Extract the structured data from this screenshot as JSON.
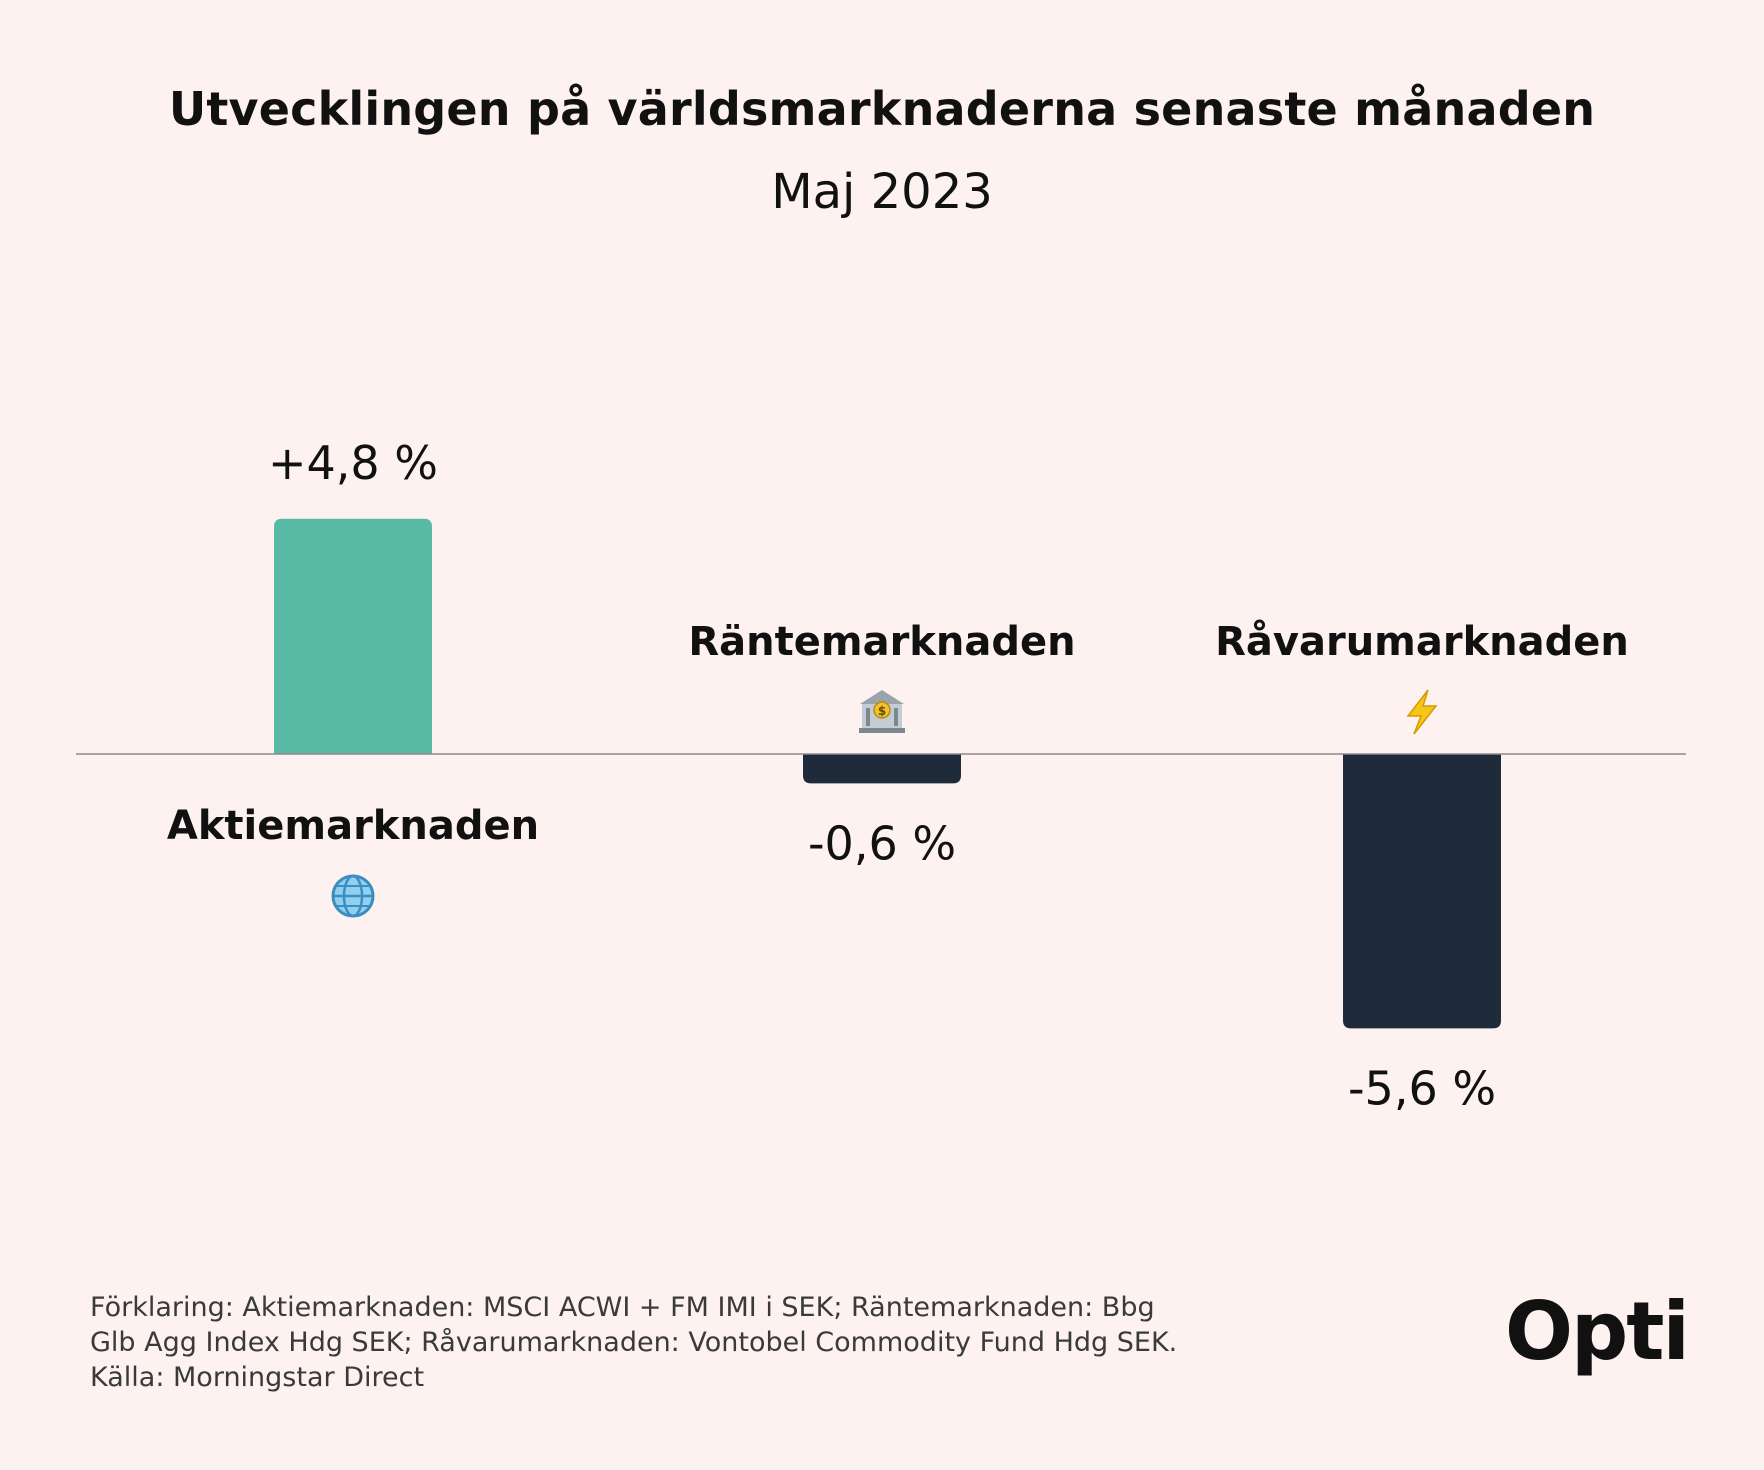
{
  "title": "Utvecklingen på världsmarknaderna senaste månaden",
  "subtitle": "Maj 2023",
  "chart_data": {
    "type": "bar",
    "categories": [
      "Aktiemarknaden",
      "Räntemarknaden",
      "Råvarumarknaden"
    ],
    "values": [
      4.8,
      -0.6,
      -5.6
    ],
    "value_labels": [
      "+4,8 %",
      "-0,6 %",
      "-5,6 %"
    ],
    "icons": [
      "globe-icon",
      "bank-icon",
      "lightning-icon"
    ],
    "colors": {
      "positive": "#58b9a5",
      "negative": "#1f2a3a",
      "axis": "#8a8a8a"
    },
    "ylim": [
      -5.6,
      4.8
    ],
    "grid": false
  },
  "footnote": [
    "Förklaring: Aktiemarknaden: MSCI ACWI + FM IMI i SEK; Räntemarknaden: Bbg",
    "Glb Agg Index Hdg SEK; Råvarumarknaden: Vontobel Commodity Fund Hdg SEK.",
    "Källa: Morningstar Direct"
  ],
  "logo": "Opti"
}
